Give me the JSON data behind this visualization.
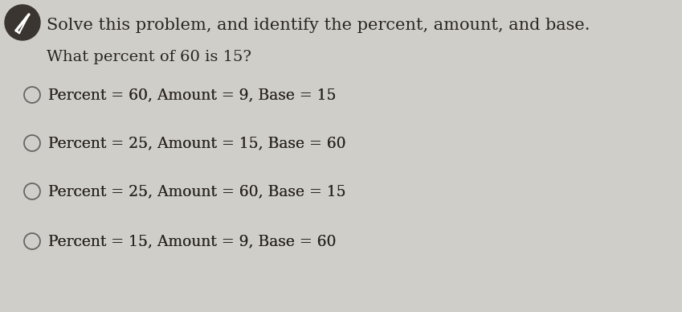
{
  "title_line1": "Solve this problem, and identify the percent, amount, and base.",
  "title_line2": "What percent of 60 is 15?",
  "options": [
    "Percent = 60, Amount = 9, Base = 15",
    "Percent = 25, Amount = 15, Base = 60",
    "Percent = 25, Amount = 60, Base = 15",
    "Percent = 15, Amount = 9, Base = 60"
  ],
  "icon_bg_color": "#3a3530",
  "background_color": "#d0cec8",
  "text_color": "#2a2520",
  "circle_edge_color": "#666666",
  "font_size_title1": 15,
  "font_size_title2": 14,
  "font_size_options": 13.5,
  "fig_width": 8.49,
  "fig_height": 3.88
}
